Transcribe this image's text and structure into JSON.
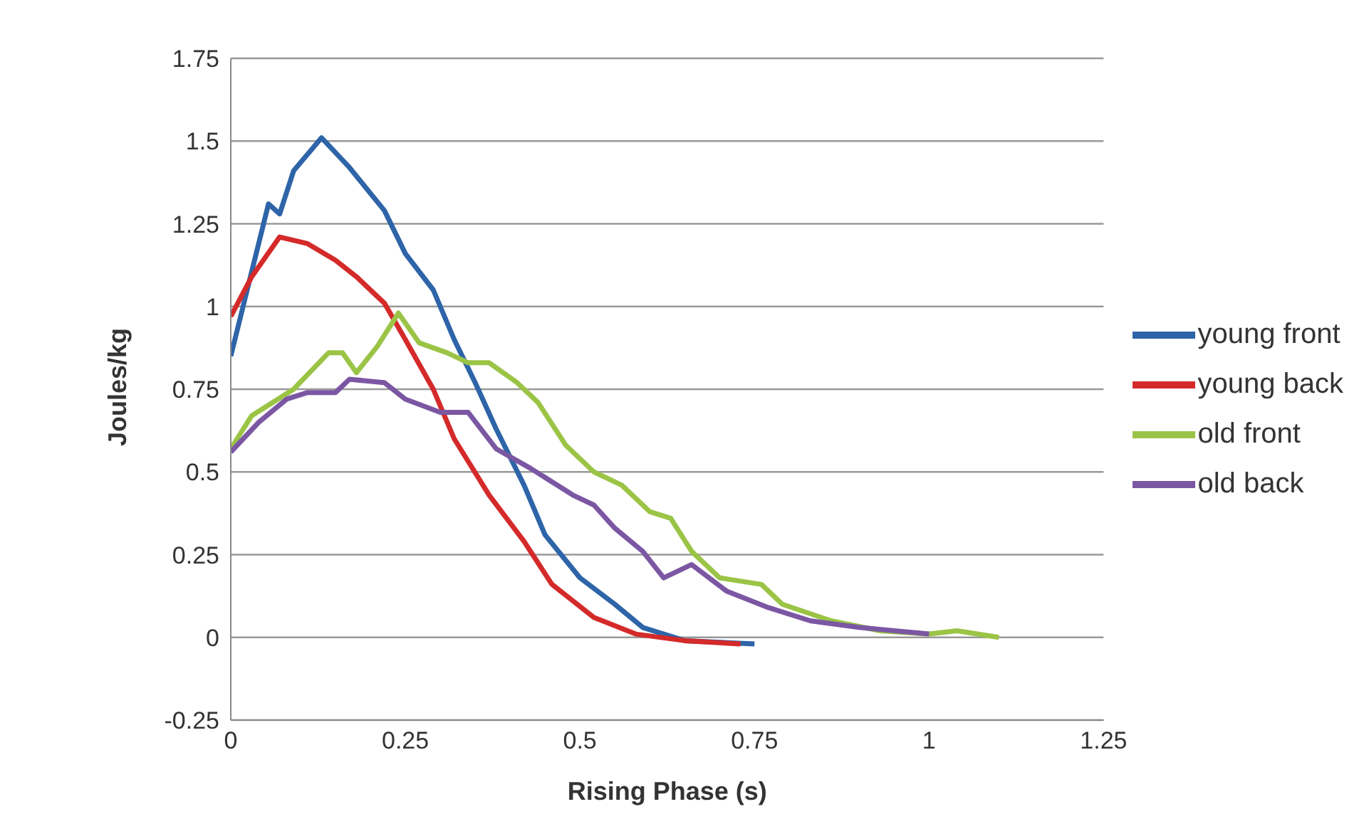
{
  "chart_data": {
    "type": "line",
    "xlabel": "Rising Phase (s)",
    "ylabel": "Joules/kg",
    "xlim": [
      0,
      1.25
    ],
    "xticks": [
      0,
      0.25,
      0.5,
      0.75,
      1,
      1.25
    ],
    "ylim": [
      -0.25,
      1.75
    ],
    "yticks": [
      -0.25,
      0,
      0.25,
      0.5,
      0.75,
      1,
      1.25,
      1.5,
      1.75
    ],
    "grid": "y",
    "legend": "right",
    "marker": "none",
    "series": [
      {
        "name": "young front",
        "color": "#2e64a8",
        "x": [
          0,
          0.054,
          0.07,
          0.09,
          0.13,
          0.17,
          0.22,
          0.25,
          0.29,
          0.32,
          0.35,
          0.38,
          0.42,
          0.45,
          0.5,
          0.55,
          0.59,
          0.65,
          0.75
        ],
        "values": [
          0.85,
          1.31,
          1.28,
          1.41,
          1.51,
          1.42,
          1.29,
          1.16,
          1.05,
          0.9,
          0.77,
          0.63,
          0.46,
          0.31,
          0.18,
          0.1,
          0.03,
          -0.01,
          -0.02
        ]
      },
      {
        "name": "young back",
        "color": "#d42a2a",
        "x": [
          0,
          0.03,
          0.07,
          0.11,
          0.15,
          0.18,
          0.22,
          0.25,
          0.29,
          0.32,
          0.37,
          0.42,
          0.46,
          0.52,
          0.58,
          0.65,
          0.73
        ],
        "values": [
          0.97,
          1.09,
          1.21,
          1.19,
          1.14,
          1.09,
          1.01,
          0.9,
          0.75,
          0.6,
          0.43,
          0.29,
          0.16,
          0.06,
          0.01,
          -0.01,
          -0.02
        ]
      },
      {
        "name": "old front",
        "color": "#9bc446",
        "x": [
          0,
          0.03,
          0.09,
          0.14,
          0.16,
          0.18,
          0.21,
          0.24,
          0.27,
          0.31,
          0.34,
          0.37,
          0.41,
          0.44,
          0.48,
          0.52,
          0.56,
          0.6,
          0.63,
          0.66,
          0.7,
          0.76,
          0.79,
          0.86,
          0.93,
          1.0,
          1.04,
          1.1
        ],
        "values": [
          0.57,
          0.67,
          0.75,
          0.86,
          0.86,
          0.8,
          0.88,
          0.98,
          0.89,
          0.86,
          0.83,
          0.83,
          0.77,
          0.71,
          0.58,
          0.5,
          0.46,
          0.38,
          0.36,
          0.26,
          0.18,
          0.16,
          0.1,
          0.05,
          0.02,
          0.01,
          0.02,
          0
        ]
      },
      {
        "name": "old back",
        "color": "#7b57a3",
        "x": [
          0,
          0.04,
          0.08,
          0.11,
          0.15,
          0.17,
          0.22,
          0.25,
          0.3,
          0.34,
          0.38,
          0.43,
          0.49,
          0.52,
          0.55,
          0.59,
          0.62,
          0.66,
          0.71,
          0.77,
          0.83,
          0.9,
          1.0
        ],
        "values": [
          0.56,
          0.65,
          0.72,
          0.74,
          0.74,
          0.78,
          0.77,
          0.72,
          0.68,
          0.68,
          0.57,
          0.51,
          0.43,
          0.4,
          0.33,
          0.26,
          0.18,
          0.22,
          0.14,
          0.09,
          0.05,
          0.03,
          0.01
        ]
      }
    ]
  }
}
